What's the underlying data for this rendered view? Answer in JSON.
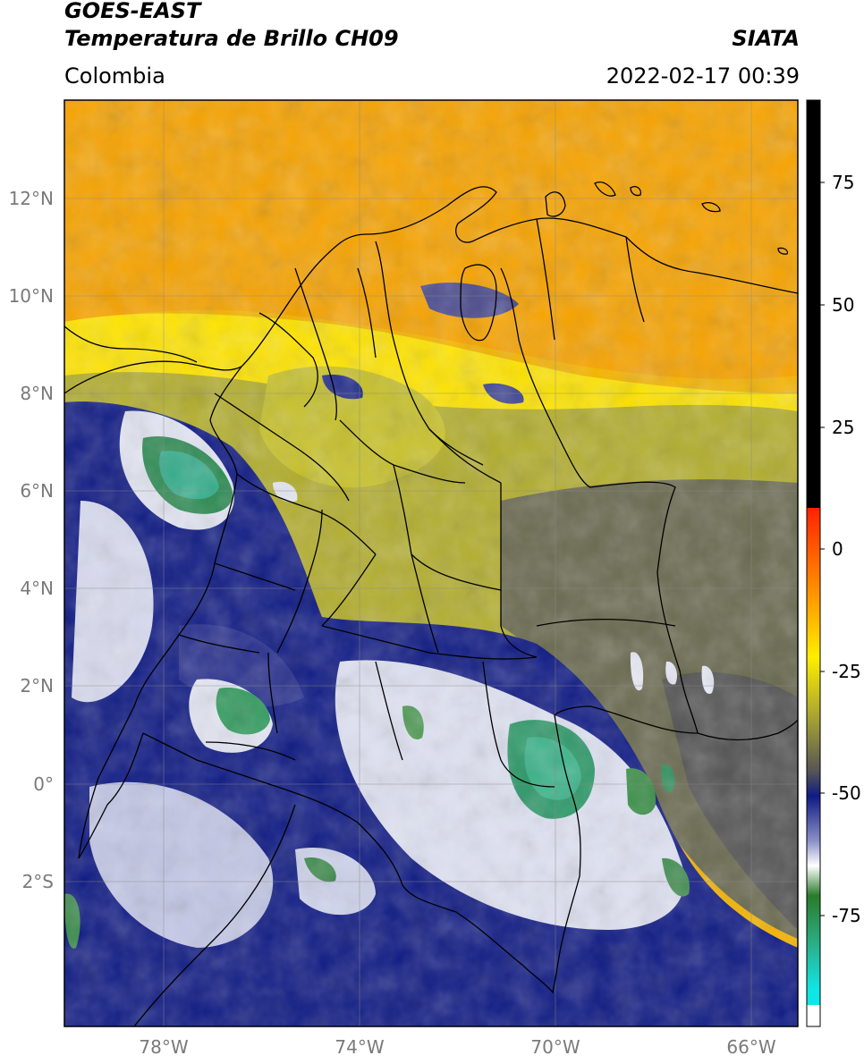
{
  "header": {
    "satellite": "GOES-EAST",
    "product": "Temperatura de Brillo CH09",
    "brand": "SIATA",
    "region": "Colombia",
    "datetime": "2022-02-17 00:39"
  },
  "map": {
    "lat_ticks": [
      "12°N",
      "10°N",
      "8°N",
      "6°N",
      "4°N",
      "2°N",
      "0°",
      "2°S"
    ],
    "lon_ticks": [
      "78°W",
      "74°W",
      "70°W",
      "66°W"
    ]
  },
  "colorbar": {
    "ticks": [
      "75",
      "50",
      "25",
      "0",
      "-25",
      "-50",
      "-75"
    ],
    "colors": {
      "black": "#000000",
      "red": "#ff2200",
      "orange": "#ff9900",
      "yellow": "#ffee00",
      "olive": "#a8a432",
      "gray": "#555555",
      "navy": "#101b84",
      "white": "#ffffff",
      "green": "#2a7b2a",
      "teal": "#2ab08a",
      "cyan": "#10e6e6"
    }
  }
}
